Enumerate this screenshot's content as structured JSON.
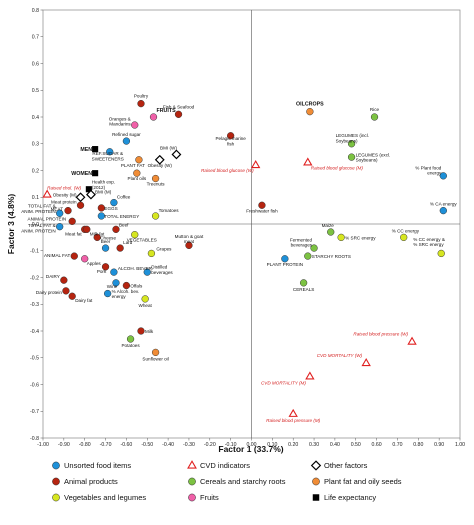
{
  "chart_data": {
    "type": "scatter",
    "xlabel": "Factor 1 (33.7%)",
    "ylabel": "Factor 3 (4.8%)",
    "xlim": [
      -1.0,
      1.0
    ],
    "ylim": [
      -0.8,
      0.8
    ],
    "x_ticks": [
      "-1.00",
      "-0.90",
      "-0.80",
      "-0.70",
      "-0.60",
      "-0.50",
      "-0.40",
      "-0.30",
      "-0.20",
      "-0.10",
      "0.00",
      "0.10",
      "0.20",
      "0.30",
      "0.40",
      "0.50",
      "0.60",
      "0.70",
      "0.80",
      "0.90",
      "1.00"
    ],
    "y_ticks": [
      "0.8",
      "0.7",
      "0.6",
      "0.5",
      "0.4",
      "0.3",
      "0.2",
      "0.1",
      "0.0",
      "-0.1",
      "-0.2",
      "-0.3",
      "-0.4",
      "-0.5",
      "-0.6",
      "-0.7",
      "-0.8"
    ],
    "grid": false,
    "legend_position": "bottom",
    "categories": [
      {
        "id": "unsorted",
        "label": "Unsorted food items",
        "shape": "circle",
        "color": "#1e90d8"
      },
      {
        "id": "cvd",
        "label": "CVD indicators",
        "shape": "triangle",
        "color": "#e02020"
      },
      {
        "id": "other",
        "label": "Other factors",
        "shape": "diamond",
        "color": "#000000"
      },
      {
        "id": "animal",
        "label": "Animal products",
        "shape": "circle",
        "color": "#b52410"
      },
      {
        "id": "cereal",
        "label": "Cereals and starchy roots",
        "shape": "circle",
        "color": "#7cc242"
      },
      {
        "id": "plantfat",
        "label": "Plant fat and oily seeds",
        "shape": "circle",
        "color": "#f08c36"
      },
      {
        "id": "veg",
        "label": "Vegetables and legumes",
        "shape": "circle",
        "color": "#d6e620"
      },
      {
        "id": "fruits",
        "label": "Fruits",
        "shape": "circle",
        "color": "#f060a8"
      },
      {
        "id": "life",
        "label": "Life expectancy",
        "shape": "square",
        "color": "#000000"
      }
    ],
    "points": [
      {
        "label": "Poultry",
        "x": -0.53,
        "y": 0.45,
        "cat": "animal"
      },
      {
        "label": "FRUITS",
        "x": -0.47,
        "y": 0.4,
        "cat": "fruits"
      },
      {
        "label": "Fish & Seafood",
        "x": -0.35,
        "y": 0.41,
        "cat": "animal"
      },
      {
        "label": "OILCROPS",
        "x": 0.28,
        "y": 0.42,
        "cat": "plantfat"
      },
      {
        "label": "Rice",
        "x": 0.59,
        "y": 0.4,
        "cat": "cereal"
      },
      {
        "label": "Oranges & Mandarins",
        "x": -0.56,
        "y": 0.37,
        "cat": "fruits"
      },
      {
        "label": "Pelagic marine fish",
        "x": -0.1,
        "y": 0.33,
        "cat": "animal"
      },
      {
        "label": "Refined sugar",
        "x": -0.6,
        "y": 0.31,
        "cat": "unsorted"
      },
      {
        "label": "LEGUMES (incl. Soybeans)",
        "x": 0.48,
        "y": 0.3,
        "cat": "cereal"
      },
      {
        "label": "MEN",
        "x": -0.75,
        "y": 0.28,
        "cat": "life"
      },
      {
        "label": "REF.SUGAR & SWEETENERS",
        "x": -0.68,
        "y": 0.27,
        "cat": "unsorted"
      },
      {
        "label": "LEGUMES (excl. Soybeans)",
        "x": 0.48,
        "y": 0.25,
        "cat": "cereal"
      },
      {
        "label": "BMI (W)",
        "x": -0.36,
        "y": 0.26,
        "cat": "other"
      },
      {
        "label": "PLANT FAT",
        "x": -0.54,
        "y": 0.24,
        "cat": "plantfat"
      },
      {
        "label": "Obesity (W)",
        "x": -0.44,
        "y": 0.24,
        "cat": "other"
      },
      {
        "label": "Raised blood glucose (W)",
        "x": 0.02,
        "y": 0.22,
        "cat": "cvd"
      },
      {
        "label": "Raised blood glucose (M)",
        "x": 0.27,
        "y": 0.23,
        "cat": "cvd"
      },
      {
        "label": "WOMEN",
        "x": -0.75,
        "y": 0.19,
        "cat": "life"
      },
      {
        "label": "Plant oils",
        "x": -0.55,
        "y": 0.19,
        "cat": "plantfat"
      },
      {
        "label": "Treenuts",
        "x": -0.46,
        "y": 0.17,
        "cat": "plantfat"
      },
      {
        "label": "% Plant food energy",
        "x": 0.92,
        "y": 0.18,
        "cat": "unsorted"
      },
      {
        "label": "Health exp. (2012)",
        "x": -0.78,
        "y": 0.13,
        "cat": "life"
      },
      {
        "label": "Raised chol. (W)",
        "x": -0.98,
        "y": 0.11,
        "cat": "cvd"
      },
      {
        "label": "Obesity (M)",
        "x": -0.82,
        "y": 0.1,
        "cat": "other"
      },
      {
        "label": "BMI (M)",
        "x": -0.77,
        "y": 0.11,
        "cat": "other"
      },
      {
        "label": "Meat protein",
        "x": -0.82,
        "y": 0.07,
        "cat": "animal"
      },
      {
        "label": "Coffee",
        "x": -0.66,
        "y": 0.08,
        "cat": "unsorted"
      },
      {
        "label": "EGGS",
        "x": -0.72,
        "y": 0.06,
        "cat": "animal"
      },
      {
        "label": "MEAT",
        "x": -0.88,
        "y": 0.05,
        "cat": "animal"
      },
      {
        "label": "Freshwater fish",
        "x": 0.05,
        "y": 0.07,
        "cat": "animal"
      },
      {
        "label": "% CA energy",
        "x": 0.92,
        "y": 0.05,
        "cat": "unsorted"
      },
      {
        "label": "TOTAL FAT & ANIM. PROTEIN",
        "x": -0.92,
        "y": 0.04,
        "cat": "unsorted"
      },
      {
        "label": "TOTAL ENERGY",
        "x": -0.72,
        "y": 0.03,
        "cat": "unsorted"
      },
      {
        "label": "ANIMAL PROTEIN",
        "x": -0.86,
        "y": 0.01,
        "cat": "animal"
      },
      {
        "label": "Tomatoes",
        "x": -0.46,
        "y": 0.03,
        "cat": "veg"
      },
      {
        "label": "TOTAL FAT & ANIM. PROTEIN",
        "x": -0.92,
        "y": -0.01,
        "cat": "unsorted"
      },
      {
        "label": "Meat fat",
        "x": -0.8,
        "y": -0.02,
        "cat": "animal"
      },
      {
        "label": "Milk fat",
        "x": -0.79,
        "y": -0.02,
        "cat": "animal"
      },
      {
        "label": "Beef",
        "x": -0.65,
        "y": -0.02,
        "cat": "animal"
      },
      {
        "label": "Cheese",
        "x": -0.74,
        "y": -0.05,
        "cat": "animal"
      },
      {
        "label": "VEGETABLES",
        "x": -0.56,
        "y": -0.04,
        "cat": "veg"
      },
      {
        "label": "Maize",
        "x": 0.38,
        "y": -0.03,
        "cat": "cereal"
      },
      {
        "label": "% SRC energy",
        "x": 0.43,
        "y": -0.05,
        "cat": "veg"
      },
      {
        "label": "% CC energy",
        "x": 0.73,
        "y": -0.05,
        "cat": "veg"
      },
      {
        "label": "Fermented beverages",
        "x": 0.3,
        "y": -0.09,
        "cat": "cereal"
      },
      {
        "label": "Mutton & goat meat",
        "x": -0.3,
        "y": -0.08,
        "cat": "animal"
      },
      {
        "label": "Beer",
        "x": -0.7,
        "y": -0.09,
        "cat": "unsorted"
      },
      {
        "label": "Lard",
        "x": -0.63,
        "y": -0.09,
        "cat": "animal"
      },
      {
        "label": "Grapes",
        "x": -0.48,
        "y": -0.11,
        "cat": "veg"
      },
      {
        "label": "% CC energy & % SRC energy",
        "x": 0.91,
        "y": -0.11,
        "cat": "veg"
      },
      {
        "label": "ANIMAL FAT",
        "x": -0.85,
        "y": -0.12,
        "cat": "animal"
      },
      {
        "label": "Apples",
        "x": -0.8,
        "y": -0.13,
        "cat": "fruits"
      },
      {
        "label": "STARCHY ROOTS",
        "x": 0.27,
        "y": -0.12,
        "cat": "cereal"
      },
      {
        "label": "PLANT PROTEIN",
        "x": 0.16,
        "y": -0.13,
        "cat": "unsorted"
      },
      {
        "label": "Pork",
        "x": -0.7,
        "y": -0.16,
        "cat": "animal"
      },
      {
        "label": "ALCOH. BEVER.",
        "x": -0.66,
        "y": -0.18,
        "cat": "unsorted"
      },
      {
        "label": "Distilled beverages",
        "x": -0.5,
        "y": -0.18,
        "cat": "unsorted"
      },
      {
        "label": "DAIRY",
        "x": -0.9,
        "y": -0.21,
        "cat": "animal"
      },
      {
        "label": "Wine",
        "x": -0.65,
        "y": -0.22,
        "cat": "unsorted"
      },
      {
        "label": "Offals",
        "x": -0.6,
        "y": -0.23,
        "cat": "animal"
      },
      {
        "label": "CEREALS",
        "x": 0.25,
        "y": -0.22,
        "cat": "cereal"
      },
      {
        "label": "% Alcoh. bev. energy",
        "x": -0.69,
        "y": -0.26,
        "cat": "unsorted"
      },
      {
        "label": "Dairy protein",
        "x": -0.89,
        "y": -0.25,
        "cat": "animal"
      },
      {
        "label": "Dairy fat",
        "x": -0.86,
        "y": -0.27,
        "cat": "animal"
      },
      {
        "label": "Wheat",
        "x": -0.51,
        "y": -0.28,
        "cat": "veg"
      },
      {
        "label": "Milk",
        "x": -0.53,
        "y": -0.4,
        "cat": "animal"
      },
      {
        "label": "Potatoes",
        "x": -0.58,
        "y": -0.43,
        "cat": "cereal"
      },
      {
        "label": "Sunflower oil",
        "x": -0.46,
        "y": -0.48,
        "cat": "plantfat"
      },
      {
        "label": "Raised blood pressure (W)",
        "x": 0.77,
        "y": -0.44,
        "cat": "cvd"
      },
      {
        "label": "CVD MORTALITY (W)",
        "x": 0.55,
        "y": -0.52,
        "cat": "cvd"
      },
      {
        "label": "CVD MORTALITY (M)",
        "x": 0.28,
        "y": -0.57,
        "cat": "cvd"
      },
      {
        "label": "Raised blood pressure (M)",
        "x": 0.2,
        "y": -0.71,
        "cat": "cvd"
      }
    ]
  }
}
